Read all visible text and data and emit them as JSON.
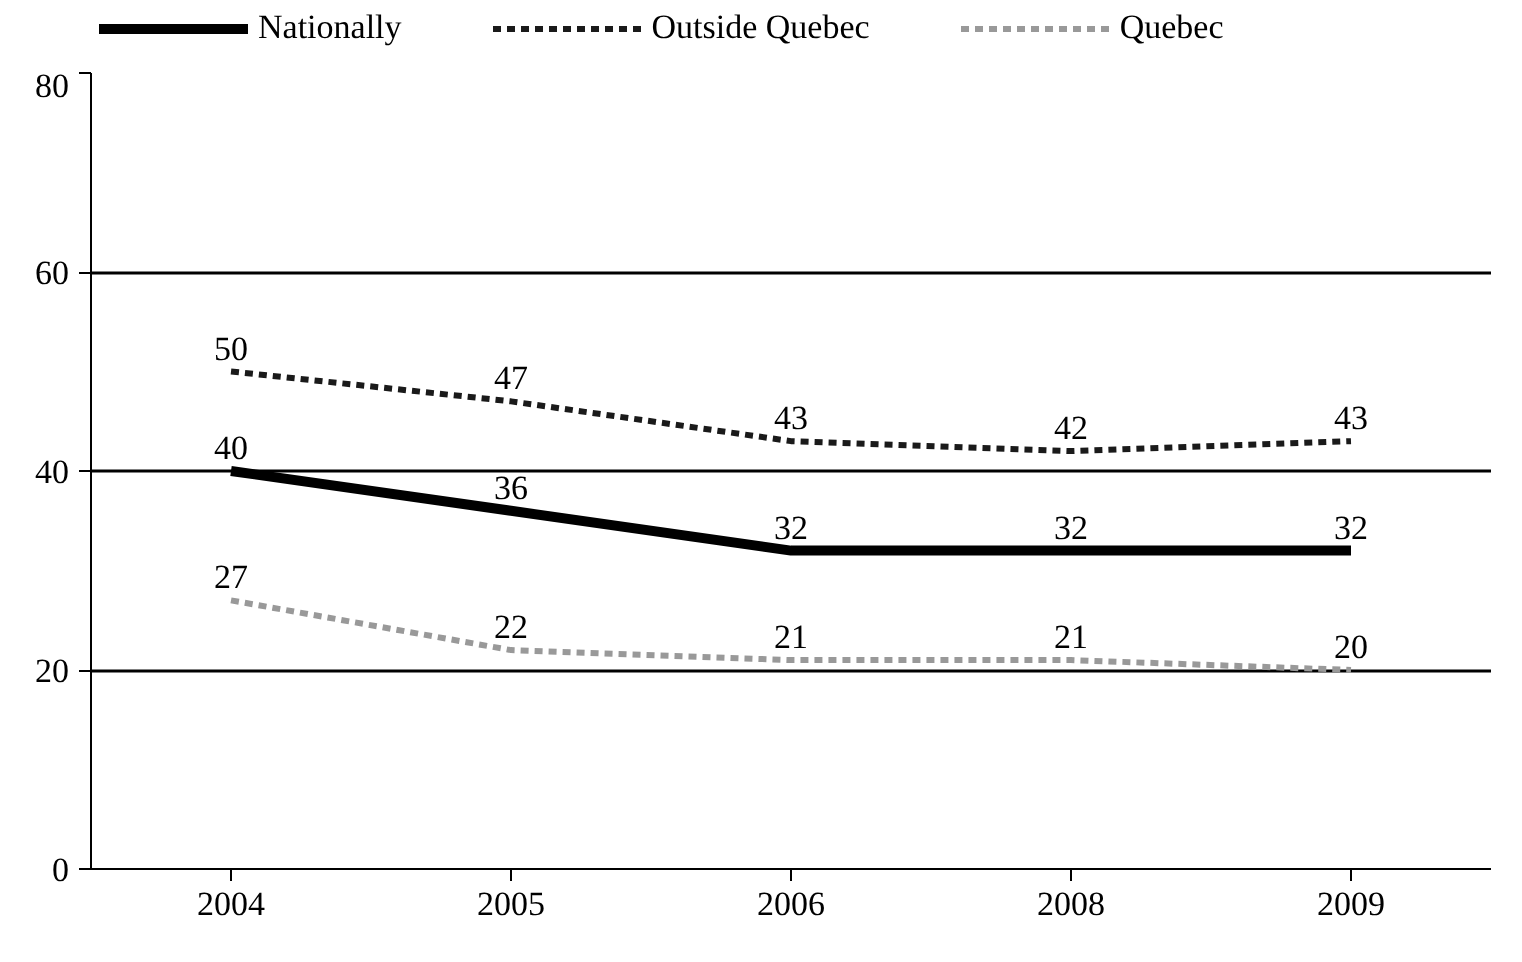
{
  "chart_data": {
    "type": "line",
    "categories": [
      "2004",
      "2005",
      "2006",
      "2008",
      "2009"
    ],
    "series": [
      {
        "name": "Nationally",
        "color": "#000000",
        "line_style": "solid",
        "values": [
          40,
          36,
          32,
          32,
          32
        ]
      },
      {
        "name": "Outside Quebec",
        "color": "#1a1a1a",
        "line_style": "dashed",
        "values": [
          50,
          47,
          43,
          42,
          43
        ]
      },
      {
        "name": "Quebec",
        "color": "#999999",
        "line_style": "dashed",
        "values": [
          27,
          22,
          21,
          21,
          20
        ]
      }
    ],
    "ylim": [
      0,
      80
    ],
    "yticks": [
      0,
      20,
      40,
      60,
      80
    ],
    "grid": "y",
    "legend": "top",
    "data_labels": true,
    "marker": "none"
  }
}
